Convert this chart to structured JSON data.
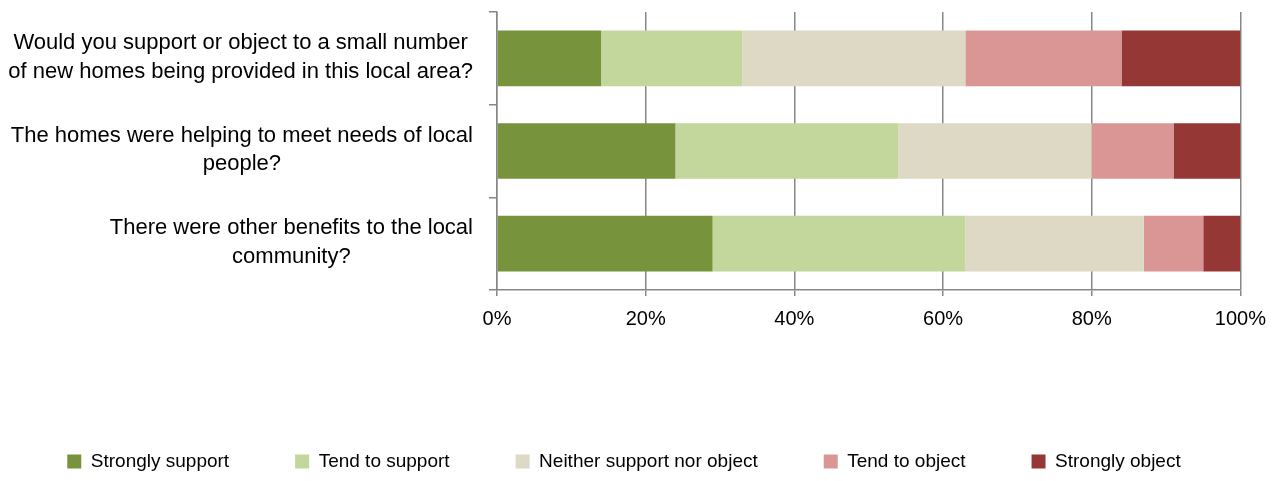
{
  "chart_data": {
    "type": "bar",
    "orientation": "horizontal",
    "stacked": true,
    "categories": [
      "Would you support or object to a small number of new homes being provided in this local area?",
      "The homes were helping to meet needs of local people?",
      "There were other benefits to the local community?"
    ],
    "series": [
      {
        "name": "Strongly support",
        "color": "#77933c",
        "values": [
          14,
          24,
          29
        ]
      },
      {
        "name": "Tend to support",
        "color": "#c3d69b",
        "values": [
          19,
          30,
          34
        ]
      },
      {
        "name": "Neither support nor object",
        "color": "#ddd9c4",
        "values": [
          30,
          26,
          24
        ]
      },
      {
        "name": "Tend to object",
        "color": "#d99694",
        "values": [
          21,
          11,
          8
        ]
      },
      {
        "name": "Strongly object",
        "color": "#953735",
        "values": [
          16,
          9,
          5
        ]
      }
    ],
    "xlim": [
      0,
      100
    ],
    "xticks": [
      {
        "value": 0,
        "label": "0%"
      },
      {
        "value": 20,
        "label": "20%"
      },
      {
        "value": 40,
        "label": "40%"
      },
      {
        "value": 60,
        "label": "60%"
      },
      {
        "value": 80,
        "label": "80%"
      },
      {
        "value": 100,
        "label": "100%"
      }
    ],
    "grid": "x",
    "legend": "bottom"
  }
}
